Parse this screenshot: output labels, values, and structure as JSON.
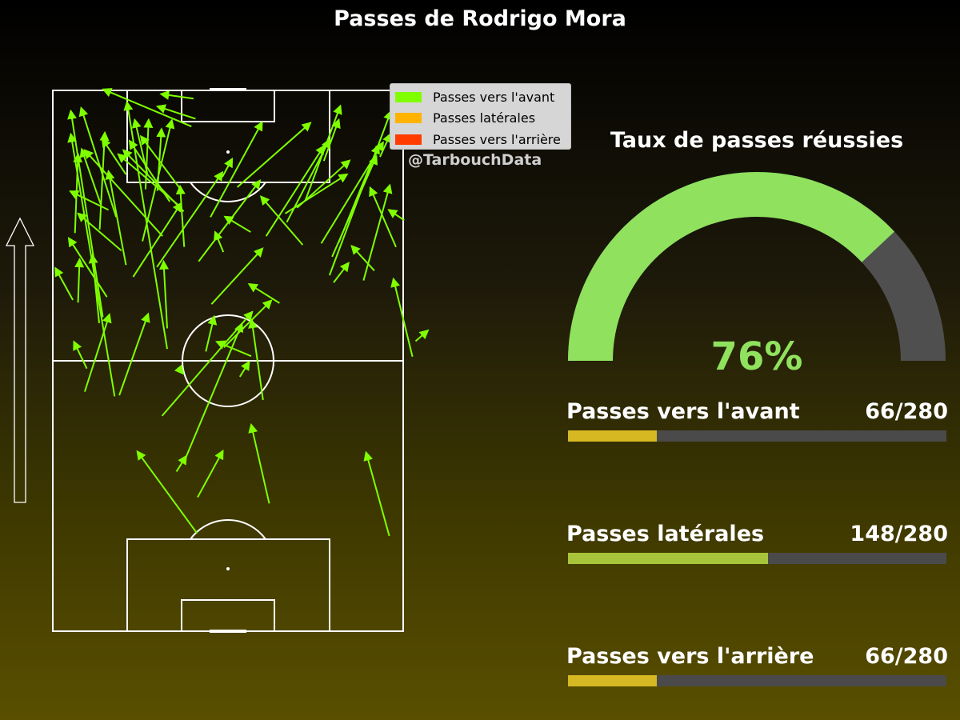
{
  "title": "Passes de Rodrigo Mora",
  "watermark": "@TarbouchData",
  "colors": {
    "forward": "#7fff00",
    "lateral": "#ffb300",
    "backward": "#ff3d00",
    "pitch_lines": "#ffffff",
    "gauge_success": "#8fe15e",
    "gauge_rest": "#4f4f4f",
    "bar_forward": "#d6b822",
    "bar_lateral": "#a8c43a",
    "bar_backward": "#d6b822",
    "bar_track": "#4a4a4a"
  },
  "legend": [
    {
      "label": "Passes vers l'avant",
      "color": "#7fff00"
    },
    {
      "label": "Passes latérales",
      "color": "#ffb300"
    },
    {
      "label": "Passes vers l'arrière",
      "color": "#ff3d00"
    }
  ],
  "gauge": {
    "title": "Taux de passes réussies",
    "value_text": "76%",
    "fraction": 0.76
  },
  "stats": [
    {
      "label": "Passes vers l'avant",
      "count_text": "66/280",
      "fraction": 0.2357
    },
    {
      "label": "Passes latérales",
      "count_text": "148/280",
      "fraction": 0.5286
    },
    {
      "label": "Passes vers l'arrière",
      "count_text": "66/280",
      "fraction": 0.2357
    }
  ],
  "chart_data": {
    "type": "pass_map",
    "pitch": {
      "length": 105,
      "width": 68,
      "attack_direction": "up"
    },
    "passes": [
      [
        12.0,
        45.6,
        3.5,
        96.5
      ],
      [
        9.7,
        61.0,
        3.5,
        101.0
      ],
      [
        22.2,
        54.8,
        14.4,
        102.7
      ],
      [
        26.9,
        98.0,
        9.8,
        105.2
      ],
      [
        21.3,
        76.7,
        6.2,
        93.4
      ],
      [
        14.2,
        71.1,
        10.8,
        89.3
      ],
      [
        27.3,
        103.4,
        21.0,
        104.3
      ],
      [
        27.7,
        99.5,
        20.3,
        101.9
      ],
      [
        25.4,
        81.5,
        13.7,
        93.4
      ],
      [
        24.4,
        82.7,
        12.7,
        92.6
      ],
      [
        24.8,
        85.8,
        17.1,
        96.1
      ],
      [
        20.3,
        85.5,
        21.1,
        97.5
      ],
      [
        18.4,
        88.6,
        15.9,
        99.3
      ],
      [
        18.0,
        85.8,
        18.6,
        99.3
      ],
      [
        14.2,
        88.7,
        9.6,
        95.6
      ],
      [
        9.1,
        78.0,
        10.1,
        96.8
      ],
      [
        12.3,
        80.4,
        5.5,
        101.6
      ],
      [
        10.5,
        64.9,
        3.1,
        76.3
      ],
      [
        3.9,
        64.3,
        0.5,
        70.5
      ],
      [
        10.8,
        81.8,
        3.4,
        85.4
      ],
      [
        13.3,
        73.9,
        4.9,
        81.1
      ],
      [
        22.7,
        83.4,
        14.9,
        95.2
      ],
      [
        17.4,
        75.7,
        23.1,
        99.2
      ],
      [
        20.2,
        70.7,
        32.9,
        89.1
      ],
      [
        38.4,
        77.5,
        33.4,
        80.5
      ],
      [
        33.1,
        73.6,
        31.5,
        77.5
      ],
      [
        30.6,
        80.4,
        40.6,
        98.8
      ],
      [
        28.3,
        71.8,
        40.2,
        87.5
      ],
      [
        25.5,
        74.6,
        24.7,
        86.4
      ],
      [
        15.6,
        68.8,
        24.9,
        83.1
      ],
      [
        9.3,
        82.9,
        5.6,
        93.6
      ],
      [
        4.3,
        77.3,
        4.9,
        92.6
      ],
      [
        35.8,
        86.2,
        50.0,
        98.7
      ],
      [
        41.4,
        76.7,
        52.6,
        94.2
      ],
      [
        49.0,
        83.6,
        55.8,
        102.0
      ],
      [
        45.4,
        79.4,
        53.7,
        95.4
      ],
      [
        53.7,
        69.1,
        65.6,
        100.9
      ],
      [
        52.1,
        75.3,
        64.1,
        94.9
      ],
      [
        55.5,
        75.5,
        63.2,
        94.3
      ],
      [
        54.2,
        72.7,
        62.8,
        92.2
      ],
      [
        60.3,
        68.1,
        65.4,
        86.6
      ],
      [
        63.5,
        92.1,
        65.5,
        96.5
      ],
      [
        52.6,
        91.3,
        55.5,
        99.3
      ],
      [
        48.5,
        75.0,
        40.4,
        84.4
      ],
      [
        47.4,
        82.2,
        57.6,
        91.4
      ],
      [
        45.1,
        81.1,
        57.1,
        88.7
      ],
      [
        66.6,
        74.6,
        61.6,
        86.1
      ],
      [
        68.2,
        79.8,
        65.2,
        81.8
      ],
      [
        54.5,
        67.7,
        57.4,
        71.5
      ],
      [
        62.4,
        70.0,
        58.0,
        74.8
      ],
      [
        69.8,
        53.3,
        66.1,
        68.4
      ],
      [
        44.0,
        63.7,
        38.1,
        67.4
      ],
      [
        33.2,
        55.1,
        42.4,
        64.2
      ],
      [
        40.8,
        44.9,
        38.6,
        60.4
      ],
      [
        30.8,
        63.5,
        40.7,
        74.3
      ],
      [
        22.2,
        58.8,
        21.5,
        71.8
      ],
      [
        21.2,
        41.8,
        38.7,
        62.0
      ],
      [
        38.5,
        53.4,
        31.8,
        56.2
      ],
      [
        25.6,
        33.2,
        36.7,
        59.7
      ],
      [
        9.0,
        59.8,
        7.7,
        73.0
      ],
      [
        6.6,
        51.0,
        4.1,
        56.2
      ],
      [
        6.2,
        46.5,
        11.0,
        61.5
      ],
      [
        4.9,
        63.8,
        5.2,
        72.2
      ],
      [
        12.9,
        45.8,
        18.5,
        61.6
      ],
      [
        28.1,
        26.0,
        33.0,
        35.0
      ],
      [
        28.0,
        19.0,
        16.4,
        34.9
      ],
      [
        24.0,
        31.0,
        25.9,
        34.0
      ],
      [
        42.0,
        24.8,
        38.5,
        40.1
      ],
      [
        65.3,
        18.5,
        60.8,
        34.7
      ],
      [
        70.4,
        56.3,
        72.8,
        58.4
      ],
      [
        36.3,
        49.4,
        38.1,
        52.3
      ],
      [
        24.3,
        51.2,
        25.3,
        50.0
      ],
      [
        29.7,
        54.3,
        31.3,
        61.1
      ],
      [
        32.9,
        88.2,
        34.8,
        91.7
      ]
    ]
  }
}
